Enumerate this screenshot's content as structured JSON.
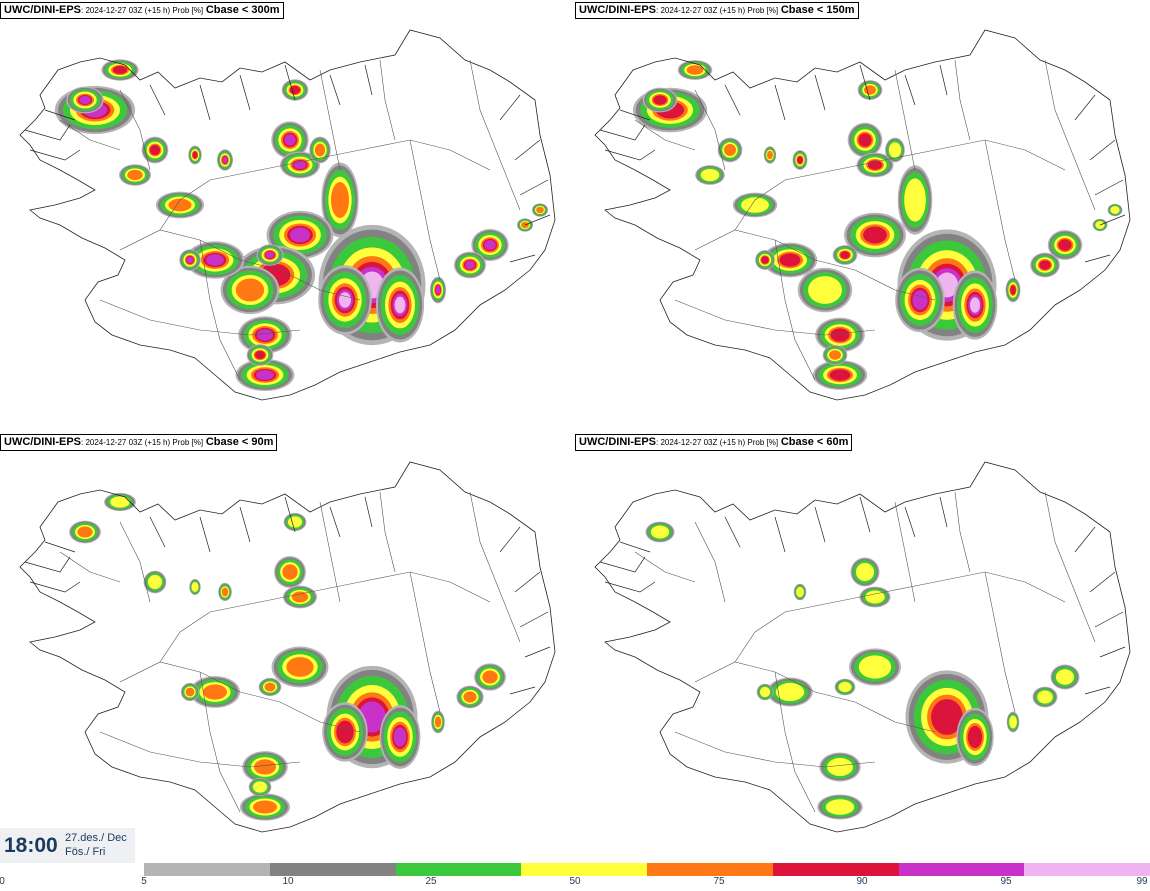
{
  "panels": [
    {
      "model": "UWC/DINI-EPS",
      "run": ": 2024-12-27 03Z (+15 h) Prob [%]",
      "threshold": "Cbase < 300m",
      "level": 4
    },
    {
      "model": "UWC/DINI-EPS",
      "run": ": 2024-12-27 03Z (+15 h) Prob [%]",
      "threshold": "Cbase < 150m",
      "level": 3
    },
    {
      "model": "UWC/DINI-EPS",
      "run": ": 2024-12-27 03Z (+15 h) Prob [%]",
      "threshold": "Cbase < 90m",
      "level": 2
    },
    {
      "model": "UWC/DINI-EPS",
      "run": ": 2024-12-27 03Z (+15 h) Prob [%]",
      "threshold": "Cbase < 60m",
      "level": 1
    }
  ],
  "time": {
    "clock": "18:00",
    "date": "27.des./ Dec",
    "day": "Fös./ Fri"
  },
  "legend": {
    "colors": [
      "#b4b4b4",
      "#828282",
      "#3cc83c",
      "#ffff3c",
      "#ff7814",
      "#dc143c",
      "#c832c8",
      "#f0b4f0"
    ],
    "ticks": [
      "0",
      "5",
      "10",
      "25",
      "50",
      "75",
      "90",
      "95",
      "99"
    ]
  },
  "map_colors": {
    "gray_light": "#b4b4b4",
    "gray_dark": "#828282",
    "green": "#3cc83c",
    "yellow": "#ffff3c",
    "orange": "#ff7814",
    "red": "#dc143c",
    "purple": "#c832c8",
    "pink": "#f0b4f0"
  }
}
